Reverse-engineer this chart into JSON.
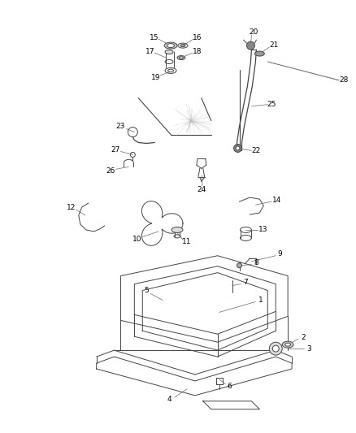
{
  "background_color": "#ffffff",
  "figure_width": 4.38,
  "figure_height": 5.33,
  "dpi": 100,
  "line_color": "#444444",
  "label_color": "#000000",
  "label_fontsize": 6.5,
  "lw": 0.7
}
